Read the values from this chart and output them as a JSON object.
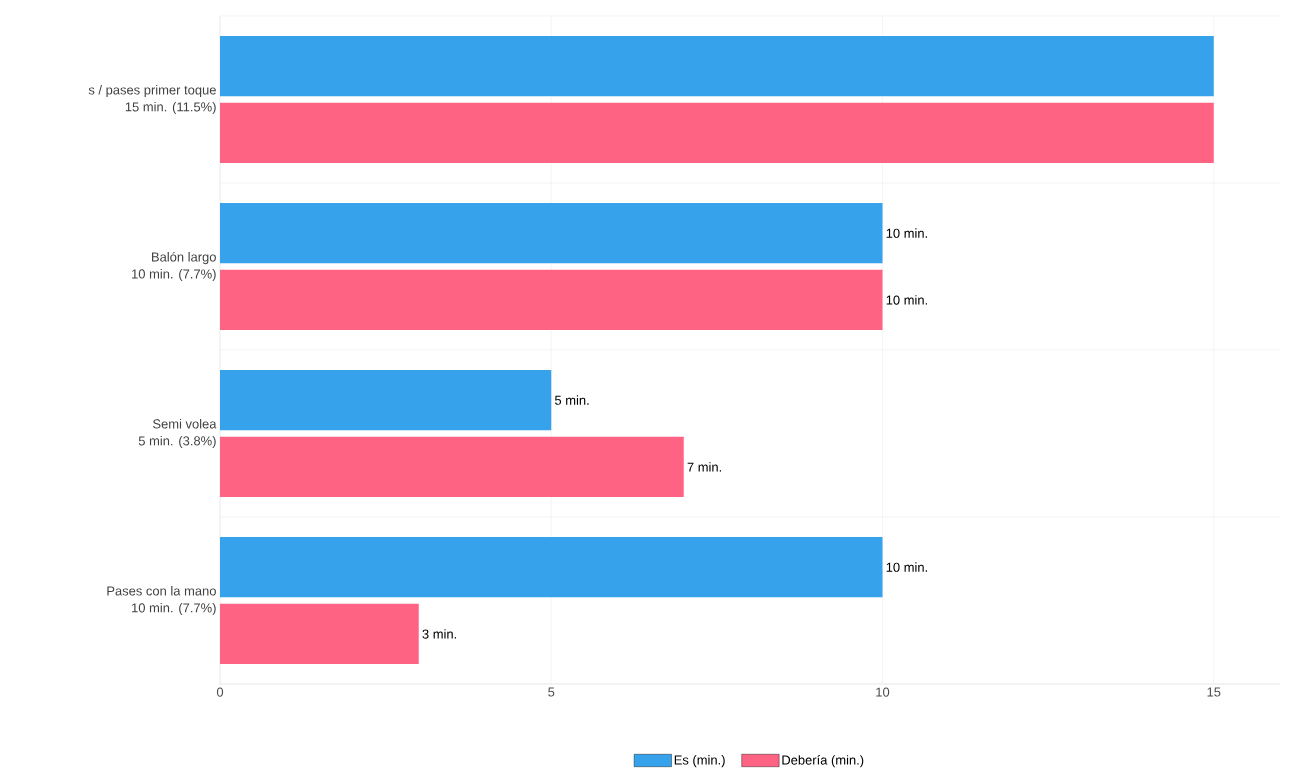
{
  "chart_data": {
    "type": "bar",
    "orientation": "horizontal",
    "categories": [
      "s / pases primer toque\n15 min. (11.5%)",
      "Balón largo\n10 min. (7.7%)",
      "Semi volea\n5 min. (3.8%)",
      "Pases con la mano\n10 min. (7.7%)"
    ],
    "series": [
      {
        "name": "Es (min.)",
        "color": "#36a2eb",
        "values": [
          15,
          10,
          5,
          10
        ],
        "value_labels": [
          null,
          "10 min.",
          "5 min.",
          "10 min."
        ]
      },
      {
        "name": "Debería (min.)",
        "color": "#ff6384",
        "values": [
          15,
          10,
          7,
          3
        ],
        "value_labels": [
          null,
          "10 min.",
          "7 min.",
          "3 min."
        ]
      }
    ],
    "xlim": [
      0,
      16
    ],
    "xticks": [
      0,
      5,
      10,
      15
    ],
    "grid": true,
    "legend": "bottom"
  }
}
